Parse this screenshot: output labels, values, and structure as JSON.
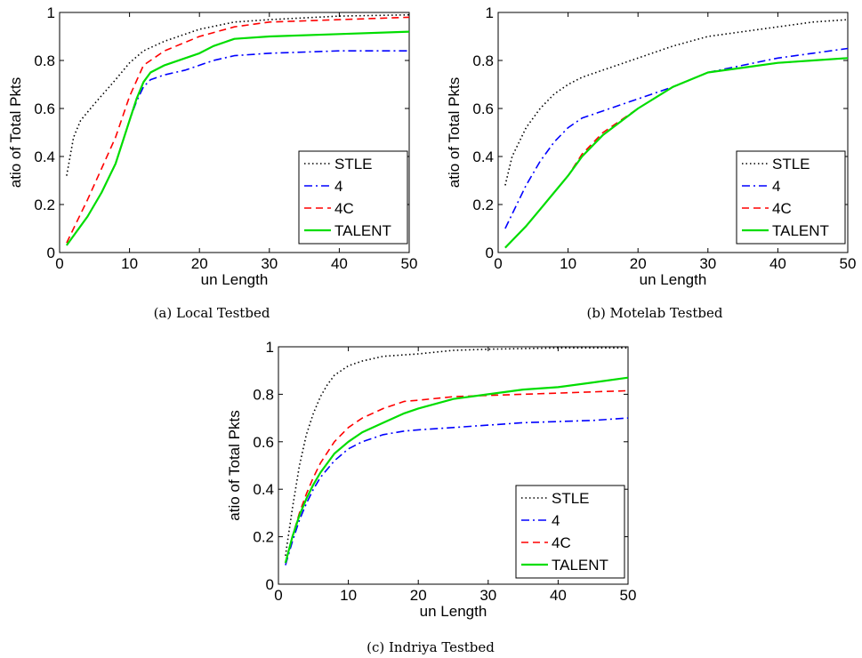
{
  "figure": {
    "legend_placement": "bottom-right",
    "series_styles": [
      {
        "name": "STLE",
        "color": "#000000",
        "dash": "dotted"
      },
      {
        "name": "4",
        "color": "#0000ff",
        "dash": "dashdot"
      },
      {
        "name": "4C",
        "color": "#ff0000",
        "dash": "dashed"
      },
      {
        "name": "TALENT",
        "color": "#00dd00",
        "dash": "solid"
      }
    ]
  },
  "chart_data": [
    {
      "type": "line",
      "caption": "(a) Local Testbed",
      "xlabel": "un Length",
      "ylabel": "atio of Total Pkts",
      "xlim": [
        0,
        50
      ],
      "ylim": [
        0,
        1
      ],
      "xticks": [
        "0",
        "10",
        "20",
        "30",
        "40",
        "50"
      ],
      "yticks": [
        "0",
        "0.2",
        "0.4",
        "0.6",
        "0.8",
        "1"
      ],
      "grid": false,
      "legend": [
        "STLE",
        "4",
        "4C",
        "TALENT"
      ],
      "series": [
        {
          "name": "STLE",
          "x": [
            1,
            2,
            3,
            5,
            8,
            10,
            12,
            15,
            20,
            25,
            30,
            40,
            50
          ],
          "y": [
            0.32,
            0.48,
            0.55,
            0.62,
            0.72,
            0.79,
            0.84,
            0.88,
            0.93,
            0.96,
            0.97,
            0.985,
            0.99
          ]
        },
        {
          "name": "4",
          "x": [
            1,
            2,
            4,
            6,
            8,
            10,
            11,
            12,
            13,
            15,
            18,
            20,
            22,
            25,
            30,
            40,
            50
          ],
          "y": [
            0.03,
            0.07,
            0.15,
            0.25,
            0.37,
            0.55,
            0.63,
            0.69,
            0.72,
            0.74,
            0.76,
            0.78,
            0.8,
            0.82,
            0.83,
            0.84,
            0.84
          ]
        },
        {
          "name": "4C",
          "x": [
            1,
            2,
            4,
            6,
            8,
            10,
            12,
            15,
            20,
            25,
            30,
            40,
            50
          ],
          "y": [
            0.04,
            0.1,
            0.22,
            0.35,
            0.48,
            0.65,
            0.78,
            0.84,
            0.9,
            0.94,
            0.96,
            0.97,
            0.98
          ]
        },
        {
          "name": "TALENT",
          "x": [
            1,
            2,
            4,
            6,
            8,
            10,
            11,
            12,
            13,
            15,
            18,
            20,
            22,
            25,
            30,
            40,
            50
          ],
          "y": [
            0.03,
            0.07,
            0.15,
            0.25,
            0.37,
            0.55,
            0.64,
            0.71,
            0.75,
            0.78,
            0.81,
            0.83,
            0.86,
            0.89,
            0.9,
            0.91,
            0.92
          ]
        }
      ]
    },
    {
      "type": "line",
      "caption": "(b) Motelab Testbed",
      "xlabel": "un Length",
      "ylabel": "atio of Total Pkts",
      "xlim": [
        0,
        50
      ],
      "ylim": [
        0,
        1
      ],
      "xticks": [
        "0",
        "10",
        "20",
        "30",
        "40",
        "50"
      ],
      "yticks": [
        "0",
        "0.2",
        "0.4",
        "0.6",
        "0.8",
        "1"
      ],
      "grid": false,
      "legend": [
        "STLE",
        "4",
        "4C",
        "TALENT"
      ],
      "series": [
        {
          "name": "STLE",
          "x": [
            1,
            2,
            4,
            6,
            8,
            10,
            12,
            15,
            20,
            25,
            30,
            35,
            40,
            45,
            50
          ],
          "y": [
            0.28,
            0.4,
            0.52,
            0.6,
            0.66,
            0.7,
            0.73,
            0.76,
            0.81,
            0.86,
            0.9,
            0.92,
            0.94,
            0.96,
            0.97
          ]
        },
        {
          "name": "4",
          "x": [
            1,
            2,
            4,
            6,
            8,
            10,
            12,
            15,
            20,
            25,
            30,
            35,
            40,
            45,
            50
          ],
          "y": [
            0.1,
            0.16,
            0.28,
            0.38,
            0.46,
            0.52,
            0.56,
            0.59,
            0.64,
            0.69,
            0.75,
            0.78,
            0.81,
            0.83,
            0.85
          ]
        },
        {
          "name": "4C",
          "x": [
            1,
            2,
            4,
            6,
            8,
            10,
            12,
            15,
            20,
            25,
            30,
            35,
            40,
            45,
            50
          ],
          "y": [
            0.02,
            0.05,
            0.11,
            0.18,
            0.25,
            0.32,
            0.41,
            0.5,
            0.6,
            0.69,
            0.75,
            0.77,
            0.79,
            0.8,
            0.81
          ]
        },
        {
          "name": "TALENT",
          "x": [
            1,
            2,
            4,
            6,
            8,
            10,
            12,
            15,
            20,
            25,
            30,
            35,
            40,
            45,
            50
          ],
          "y": [
            0.02,
            0.05,
            0.11,
            0.18,
            0.25,
            0.32,
            0.4,
            0.49,
            0.6,
            0.69,
            0.75,
            0.77,
            0.79,
            0.8,
            0.81
          ]
        }
      ]
    },
    {
      "type": "line",
      "caption": "(c) Indriya Testbed",
      "xlabel": "un Length",
      "ylabel": "atio of Total Pkts",
      "xlim": [
        0,
        50
      ],
      "ylim": [
        0,
        1
      ],
      "xticks": [
        "0",
        "10",
        "20",
        "30",
        "40",
        "50"
      ],
      "yticks": [
        "0",
        "0.2",
        "0.4",
        "0.6",
        "0.8",
        "1"
      ],
      "grid": false,
      "legend": [
        "STLE",
        "4",
        "4C",
        "TALENT"
      ],
      "series": [
        {
          "name": "STLE",
          "x": [
            1,
            2,
            3,
            4,
            5,
            6,
            7,
            8,
            10,
            12,
            15,
            20,
            25,
            30,
            40,
            50
          ],
          "y": [
            0.12,
            0.32,
            0.5,
            0.63,
            0.72,
            0.79,
            0.84,
            0.88,
            0.92,
            0.94,
            0.96,
            0.97,
            0.985,
            0.99,
            0.995,
            0.995
          ]
        },
        {
          "name": "4",
          "x": [
            1,
            2,
            3,
            4,
            5,
            6,
            8,
            10,
            12,
            15,
            18,
            20,
            25,
            30,
            35,
            40,
            45,
            50
          ],
          "y": [
            0.08,
            0.18,
            0.27,
            0.34,
            0.4,
            0.45,
            0.52,
            0.57,
            0.6,
            0.63,
            0.645,
            0.65,
            0.66,
            0.67,
            0.68,
            0.685,
            0.69,
            0.7
          ]
        },
        {
          "name": "4C",
          "x": [
            1,
            2,
            3,
            4,
            5,
            6,
            8,
            10,
            12,
            15,
            18,
            20,
            25,
            30,
            35,
            40,
            45,
            50
          ],
          "y": [
            0.09,
            0.2,
            0.3,
            0.38,
            0.45,
            0.51,
            0.6,
            0.66,
            0.7,
            0.74,
            0.77,
            0.775,
            0.79,
            0.795,
            0.8,
            0.805,
            0.81,
            0.815
          ]
        },
        {
          "name": "TALENT",
          "x": [
            1,
            2,
            3,
            4,
            5,
            6,
            8,
            10,
            12,
            15,
            18,
            20,
            25,
            30,
            35,
            40,
            45,
            50
          ],
          "y": [
            0.09,
            0.2,
            0.29,
            0.36,
            0.42,
            0.47,
            0.55,
            0.6,
            0.64,
            0.68,
            0.72,
            0.74,
            0.78,
            0.8,
            0.82,
            0.83,
            0.85,
            0.87
          ]
        }
      ]
    }
  ]
}
